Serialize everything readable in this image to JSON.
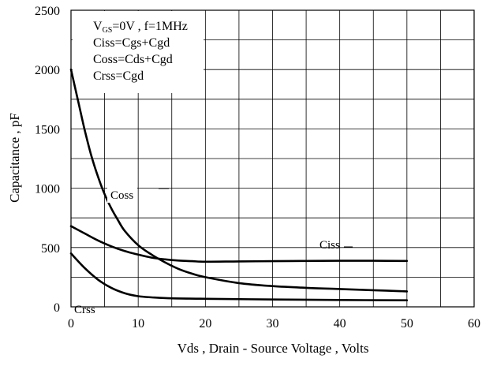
{
  "chart_data": {
    "type": "line",
    "title": "",
    "xlabel": "Vds , Drain - Source Voltage , Volts",
    "ylabel": "Capacitance , pF",
    "xlim": [
      0,
      60
    ],
    "ylim": [
      0,
      2500
    ],
    "x_ticks": [
      0,
      10,
      20,
      30,
      40,
      50,
      60
    ],
    "y_ticks": [
      0,
      500,
      1000,
      1500,
      2000,
      2500
    ],
    "grid": true,
    "series": [
      {
        "name": "Ciss",
        "x": [
          0,
          2,
          4,
          6,
          8,
          10,
          12,
          14,
          16,
          18,
          20,
          25,
          30,
          35,
          40,
          45,
          50
        ],
        "y": [
          680,
          620,
          560,
          510,
          470,
          440,
          415,
          400,
          390,
          385,
          380,
          383,
          385,
          387,
          388,
          388,
          387
        ]
      },
      {
        "name": "Coss",
        "x": [
          0,
          1,
          2,
          3,
          4,
          5,
          6,
          7,
          8,
          10,
          12,
          14,
          16,
          18,
          20,
          25,
          30,
          35,
          40,
          45,
          50
        ],
        "y": [
          2000,
          1750,
          1500,
          1280,
          1100,
          950,
          830,
          730,
          640,
          520,
          440,
          375,
          320,
          280,
          250,
          200,
          175,
          160,
          150,
          140,
          130
        ]
      },
      {
        "name": "Crss",
        "x": [
          0,
          2,
          4,
          6,
          8,
          10,
          12,
          15,
          20,
          30,
          40,
          50
        ],
        "y": [
          450,
          330,
          230,
          160,
          115,
          90,
          80,
          72,
          68,
          62,
          58,
          55
        ]
      }
    ],
    "annotations": [
      "V₉ₛ=0V , f=1MHz",
      "Ciss=Cgs+Cgd",
      "Coss=Cds+Cgd",
      "Crss=Cgd"
    ],
    "legend_lines": [
      {
        "prefix": "V",
        "sub": "GS",
        "rest": "=0V , f=1MHz"
      },
      {
        "text": "Ciss=Cgs+Cgd"
      },
      {
        "text": "Coss=Cds+Cgd"
      },
      {
        "text": "Crss=Cgd"
      }
    ],
    "series_labels": [
      "Coss",
      "Ciss",
      "Crss"
    ]
  }
}
